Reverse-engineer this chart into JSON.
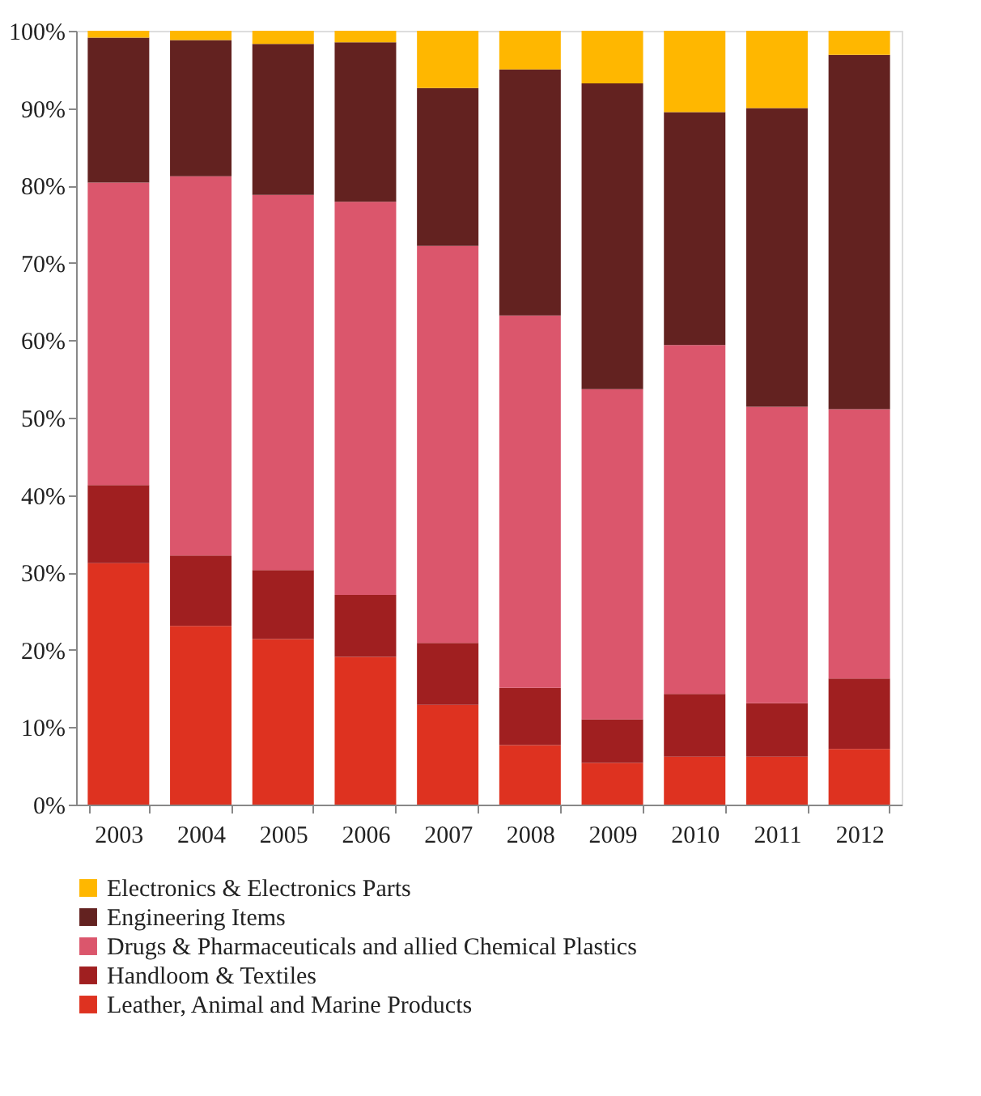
{
  "chart_data": {
    "type": "bar",
    "stacked": true,
    "categories": [
      "2003",
      "2004",
      "2005",
      "2006",
      "2007",
      "2008",
      "2009",
      "2010",
      "2011",
      "2012"
    ],
    "series": [
      {
        "name": "Leather, Animal and Marine Products",
        "color": "#de3220",
        "values": [
          31.2,
          23.1,
          21.4,
          19.1,
          12.9,
          7.7,
          5.4,
          6.2,
          6.2,
          7.2
        ]
      },
      {
        "name": "Handloom & Textiles",
        "color": "#a01f20",
        "values": [
          10.1,
          9.1,
          8.9,
          8.0,
          8.0,
          7.4,
          5.6,
          8.1,
          6.9,
          9.1
        ]
      },
      {
        "name": "Drugs & Pharmaceuticals and allied Chemical Plastics",
        "color": "#db566c",
        "values": [
          39.1,
          49.0,
          48.5,
          50.8,
          51.3,
          48.1,
          42.7,
          45.1,
          38.3,
          34.8
        ]
      },
      {
        "name": "Engineering Items",
        "color": "#632220",
        "values": [
          18.7,
          17.6,
          19.5,
          20.6,
          20.4,
          31.8,
          39.5,
          30.1,
          38.6,
          45.8
        ]
      },
      {
        "name": "Electronics & Electronics Parts",
        "color": "#ffb700",
        "values": [
          0.9,
          1.2,
          1.7,
          1.5,
          7.4,
          5.0,
          6.8,
          10.5,
          10.0,
          3.1
        ]
      }
    ],
    "ylim": [
      0,
      100
    ],
    "yticks": [
      {
        "value": 0,
        "label": "0%"
      },
      {
        "value": 10,
        "label": "10%"
      },
      {
        "value": 20,
        "label": "20%"
      },
      {
        "value": 30,
        "label": "30%"
      },
      {
        "value": 40,
        "label": "40%"
      },
      {
        "value": 50,
        "label": "50%"
      },
      {
        "value": 60,
        "label": "60%"
      },
      {
        "value": 70,
        "label": "70%"
      },
      {
        "value": 80,
        "label": "80%"
      },
      {
        "value": 90,
        "label": "90%"
      },
      {
        "value": 100,
        "label": "100%"
      }
    ],
    "grid": false,
    "legend": "bottom"
  }
}
